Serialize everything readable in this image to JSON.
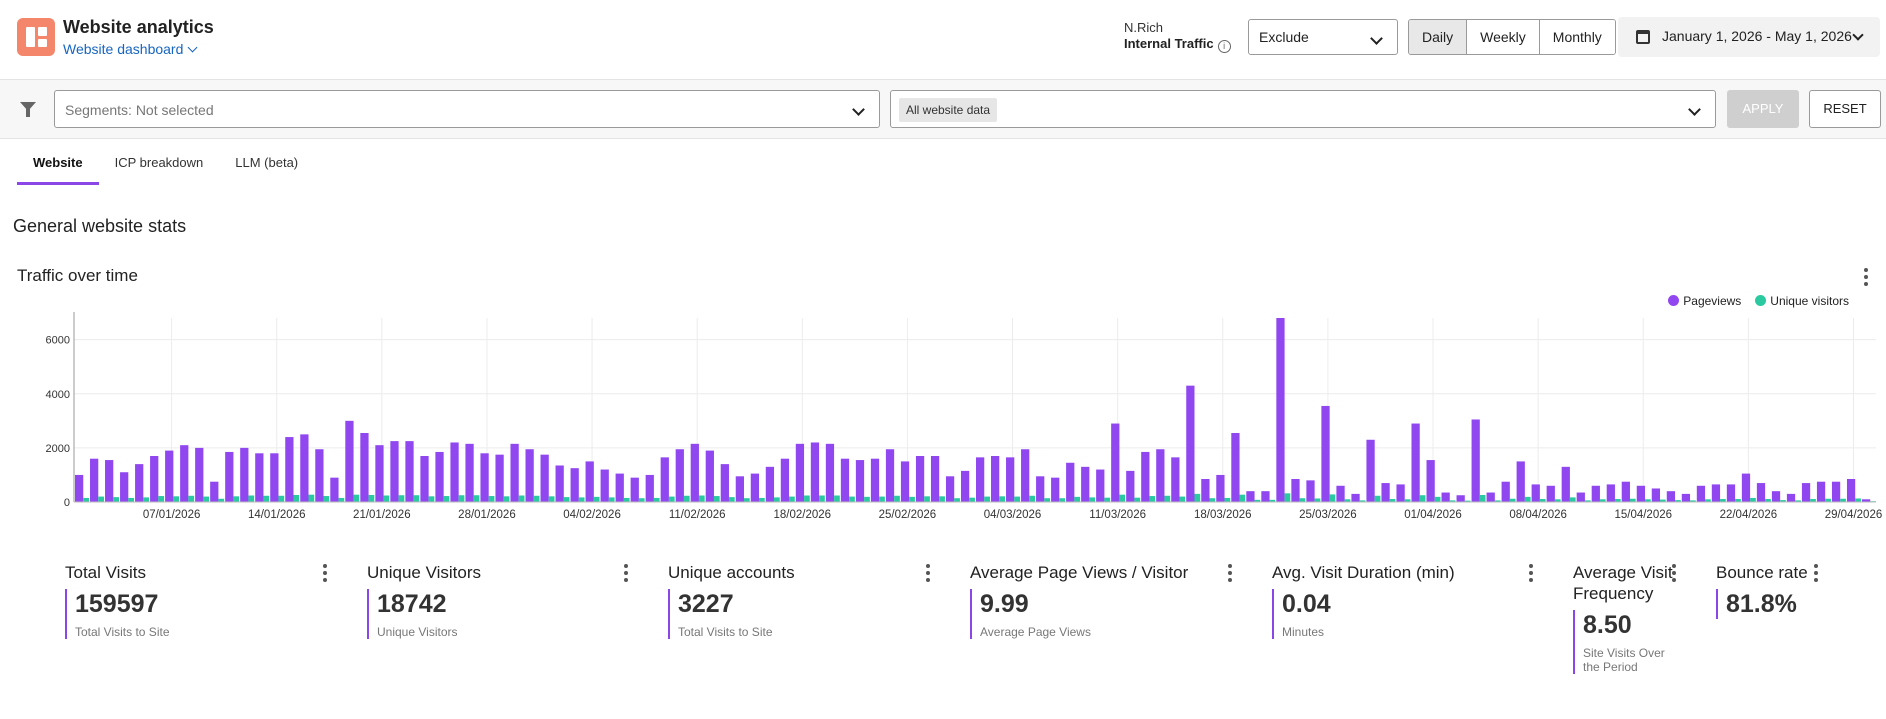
{
  "header": {
    "app_title": "Website analytics",
    "app_subtitle": "Website dashboard",
    "org_name": "N.Rich",
    "internal_traffic_label": "Internal Traffic",
    "info_glyph": "i",
    "traffic_select_value": "Exclude",
    "granularity": [
      "Daily",
      "Weekly",
      "Monthly"
    ],
    "granularity_selected": "Daily",
    "date_range": "January 1, 2026 - May 1, 2026"
  },
  "filters": {
    "segments_placeholder": "Segments: Not selected",
    "website_data_chip": "All website data",
    "apply_label": "APPLY",
    "reset_label": "RESET"
  },
  "tabs": [
    {
      "label": "Website",
      "active": true
    },
    {
      "label": "ICP breakdown",
      "active": false
    },
    {
      "label": "LLM (beta)",
      "active": false
    }
  ],
  "section_title": "General website stats",
  "chart": {
    "title": "Traffic over time"
  },
  "chart_data": {
    "type": "bar",
    "title": "Traffic over time",
    "ylim": [
      0,
      6800
    ],
    "yticks": [
      0,
      2000,
      4000,
      6000
    ],
    "xticks": [
      "07/01/2026",
      "14/01/2026",
      "21/01/2026",
      "28/01/2026",
      "04/02/2026",
      "11/02/2026",
      "18/02/2026",
      "25/02/2026",
      "04/03/2026",
      "11/03/2026",
      "18/03/2026",
      "25/03/2026",
      "01/04/2026",
      "08/04/2026",
      "15/04/2026",
      "22/04/2026",
      "29/04/2026"
    ],
    "x_start": "01/01/2026",
    "legend_position": "top-right",
    "grid": true,
    "series": [
      {
        "name": "Pageviews",
        "color": "#9147f0",
        "values": [
          1000,
          1600,
          1550,
          1100,
          1400,
          1700,
          1900,
          2100,
          2000,
          750,
          1850,
          2000,
          1800,
          1800,
          2400,
          2500,
          1950,
          900,
          3000,
          2550,
          2100,
          2250,
          2250,
          1700,
          1850,
          2200,
          2150,
          1800,
          1750,
          2150,
          1950,
          1750,
          1350,
          1250,
          1500,
          1200,
          1050,
          900,
          1000,
          1650,
          1950,
          2150,
          1900,
          1400,
          950,
          1050,
          1300,
          1600,
          2150,
          2200,
          2150,
          1600,
          1550,
          1600,
          1950,
          1500,
          1700,
          1700,
          950,
          1150,
          1650,
          1700,
          1650,
          1950,
          950,
          900,
          1450,
          1300,
          1200,
          2900,
          1150,
          1850,
          1950,
          1650,
          4300,
          850,
          1000,
          2550,
          400,
          400,
          6800,
          850,
          800,
          3550,
          600,
          300,
          2300,
          700,
          650,
          2900,
          1550,
          350,
          250,
          3050,
          350,
          750,
          1500,
          650,
          600,
          1300,
          350,
          600,
          650,
          750,
          600,
          500,
          400,
          300,
          600,
          650,
          650,
          1050,
          700,
          400,
          300,
          700,
          750,
          750,
          850,
          100
        ],
        "color_note": "purple"
      },
      {
        "name": "Unique visitors",
        "color": "#2ac9a0",
        "values": [
          150,
          200,
          180,
          150,
          170,
          220,
          210,
          230,
          200,
          120,
          210,
          240,
          230,
          230,
          260,
          270,
          220,
          150,
          270,
          260,
          240,
          250,
          250,
          210,
          220,
          250,
          250,
          220,
          210,
          240,
          230,
          210,
          180,
          170,
          190,
          170,
          150,
          140,
          150,
          200,
          230,
          240,
          220,
          180,
          140,
          150,
          170,
          200,
          240,
          240,
          240,
          200,
          190,
          200,
          230,
          190,
          210,
          210,
          140,
          160,
          200,
          210,
          200,
          230,
          140,
          140,
          190,
          170,
          160,
          270,
          160,
          220,
          230,
          200,
          300,
          140,
          150,
          270,
          80,
          80,
          320,
          140,
          130,
          280,
          100,
          60,
          230,
          110,
          100,
          250,
          190,
          60,
          50,
          260,
          60,
          120,
          190,
          110,
          100,
          170,
          60,
          100,
          110,
          120,
          100,
          90,
          70,
          60,
          100,
          110,
          110,
          150,
          110,
          70,
          60,
          110,
          120,
          120,
          130,
          30
        ]
      }
    ]
  },
  "stats": [
    {
      "title": "Total Visits",
      "value": "159597",
      "desc": "Total Visits to Site"
    },
    {
      "title": "Unique Visitors",
      "value": "18742",
      "desc": "Unique Visitors"
    },
    {
      "title": "Unique accounts",
      "value": "3227",
      "desc": "Total Visits to Site"
    },
    {
      "title": "Average Page Views / Visitor",
      "value": "9.99",
      "desc": "Average Page Views"
    },
    {
      "title": "Avg. Visit Duration (min)",
      "value": "0.04",
      "desc": "Minutes"
    },
    {
      "title": "Average Visit Frequency",
      "value": "8.50",
      "desc": "Site Visits Over the Period"
    },
    {
      "title": "Bounce rate",
      "value": "81.8%",
      "desc": ""
    }
  ]
}
